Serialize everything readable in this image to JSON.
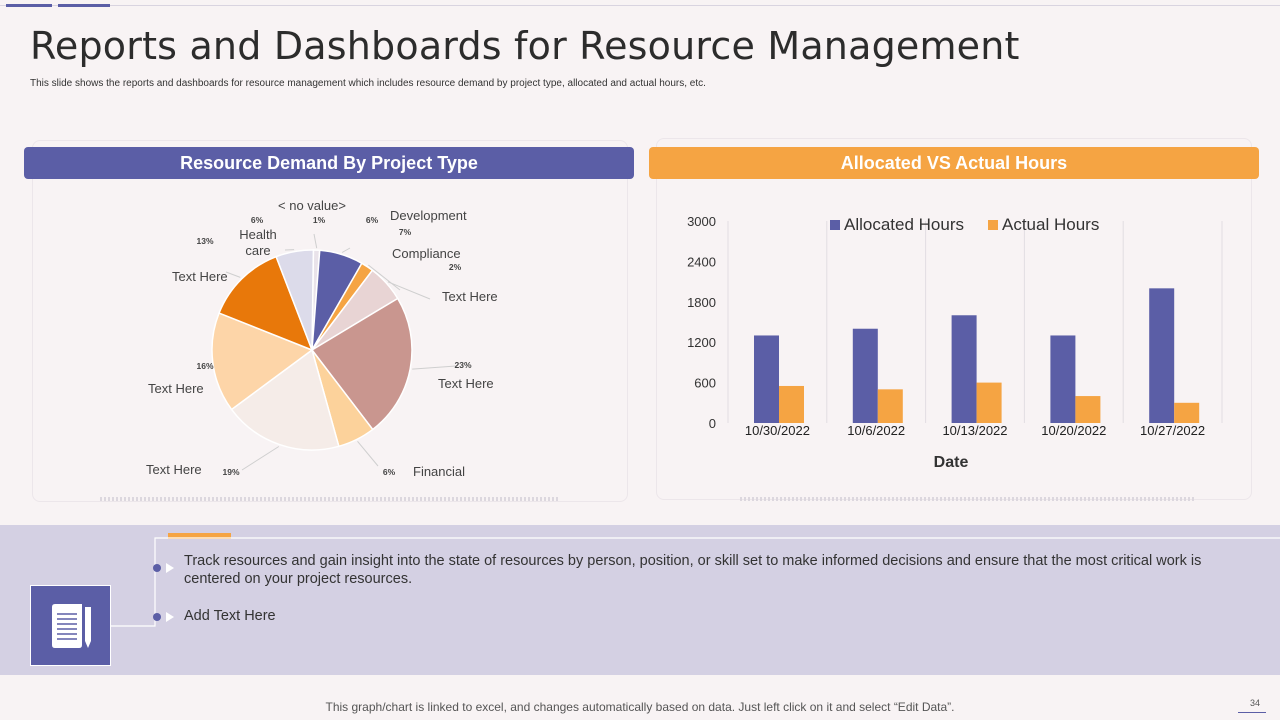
{
  "slide": {
    "title": "Reports and Dashboards for Resource Management",
    "subtitle": "This slide shows the reports and dashboards for resource management which includes resource demand by project type, allocated and actual hours, etc.",
    "footer_note": "This graph/chart is linked to excel, and changes automatically based on data. Just left click on it and select “Edit Data”.",
    "page_number": "34"
  },
  "colors": {
    "purple": "#5b5ea6",
    "orange": "#f5a443",
    "band": "#d4d0e3"
  },
  "left_panel": {
    "header": "Resource Demand By Project Type"
  },
  "right_panel": {
    "header": "Allocated VS Actual Hours"
  },
  "bullets": [
    {
      "text": "Track resources and gain insight into the state of resources by person, position, or skill set to make informed decisions and ensure that the most critical work is centered on your project resources."
    },
    {
      "text": "Add Text Here"
    }
  ],
  "icons": {
    "document": "document-pen-icon"
  },
  "chart_data": [
    {
      "type": "pie",
      "slices": [
        {
          "label": "< no value>",
          "value": 1,
          "pct_label": "1%",
          "color": "#e9e3ea"
        },
        {
          "label": "Development",
          "value": 7,
          "pct_label": "7%",
          "color": "#5b5ea6"
        },
        {
          "label": "Compliance",
          "value": 2,
          "pct_label": "2%",
          "color": "#f5a443"
        },
        {
          "label": "Text Here",
          "value": 6,
          "pct_label": "6%",
          "color": "#e8d4d4"
        },
        {
          "label": "Text Here",
          "value": 23,
          "pct_label": "23%",
          "color": "#c9968f"
        },
        {
          "label": "Financial",
          "value": 6,
          "pct_label": "6%",
          "color": "#fcd29b"
        },
        {
          "label": "Text Here",
          "value": 19,
          "pct_label": "19%",
          "color": "#f5ece8"
        },
        {
          "label": "Text Here",
          "value": 16,
          "pct_label": "16%",
          "color": "#fdd5a8"
        },
        {
          "label": "Text Here",
          "value": 13,
          "pct_label": "13%",
          "color": "#e8780a"
        },
        {
          "label": "Health care",
          "value": 6,
          "pct_label": "6%",
          "color": "#dcdbea"
        }
      ]
    },
    {
      "type": "bar",
      "categories": [
        "10/30/2022",
        "10/6/2022",
        "10/13/2022",
        "10/20/2022",
        "10/27/2022"
      ],
      "series": [
        {
          "name": "Allocated Hours",
          "values": [
            1300,
            1400,
            1600,
            1300,
            2000
          ],
          "color": "#5b5ea6"
        },
        {
          "name": "Actual Hours",
          "values": [
            550,
            500,
            600,
            400,
            300
          ],
          "color": "#f5a443"
        }
      ],
      "xlabel": "Date",
      "ylabel": "",
      "ylim": [
        0,
        3000
      ],
      "yticks": [
        0,
        600,
        1200,
        1800,
        2400,
        3000
      ],
      "legend": "top-center",
      "grid": "vertical"
    }
  ]
}
